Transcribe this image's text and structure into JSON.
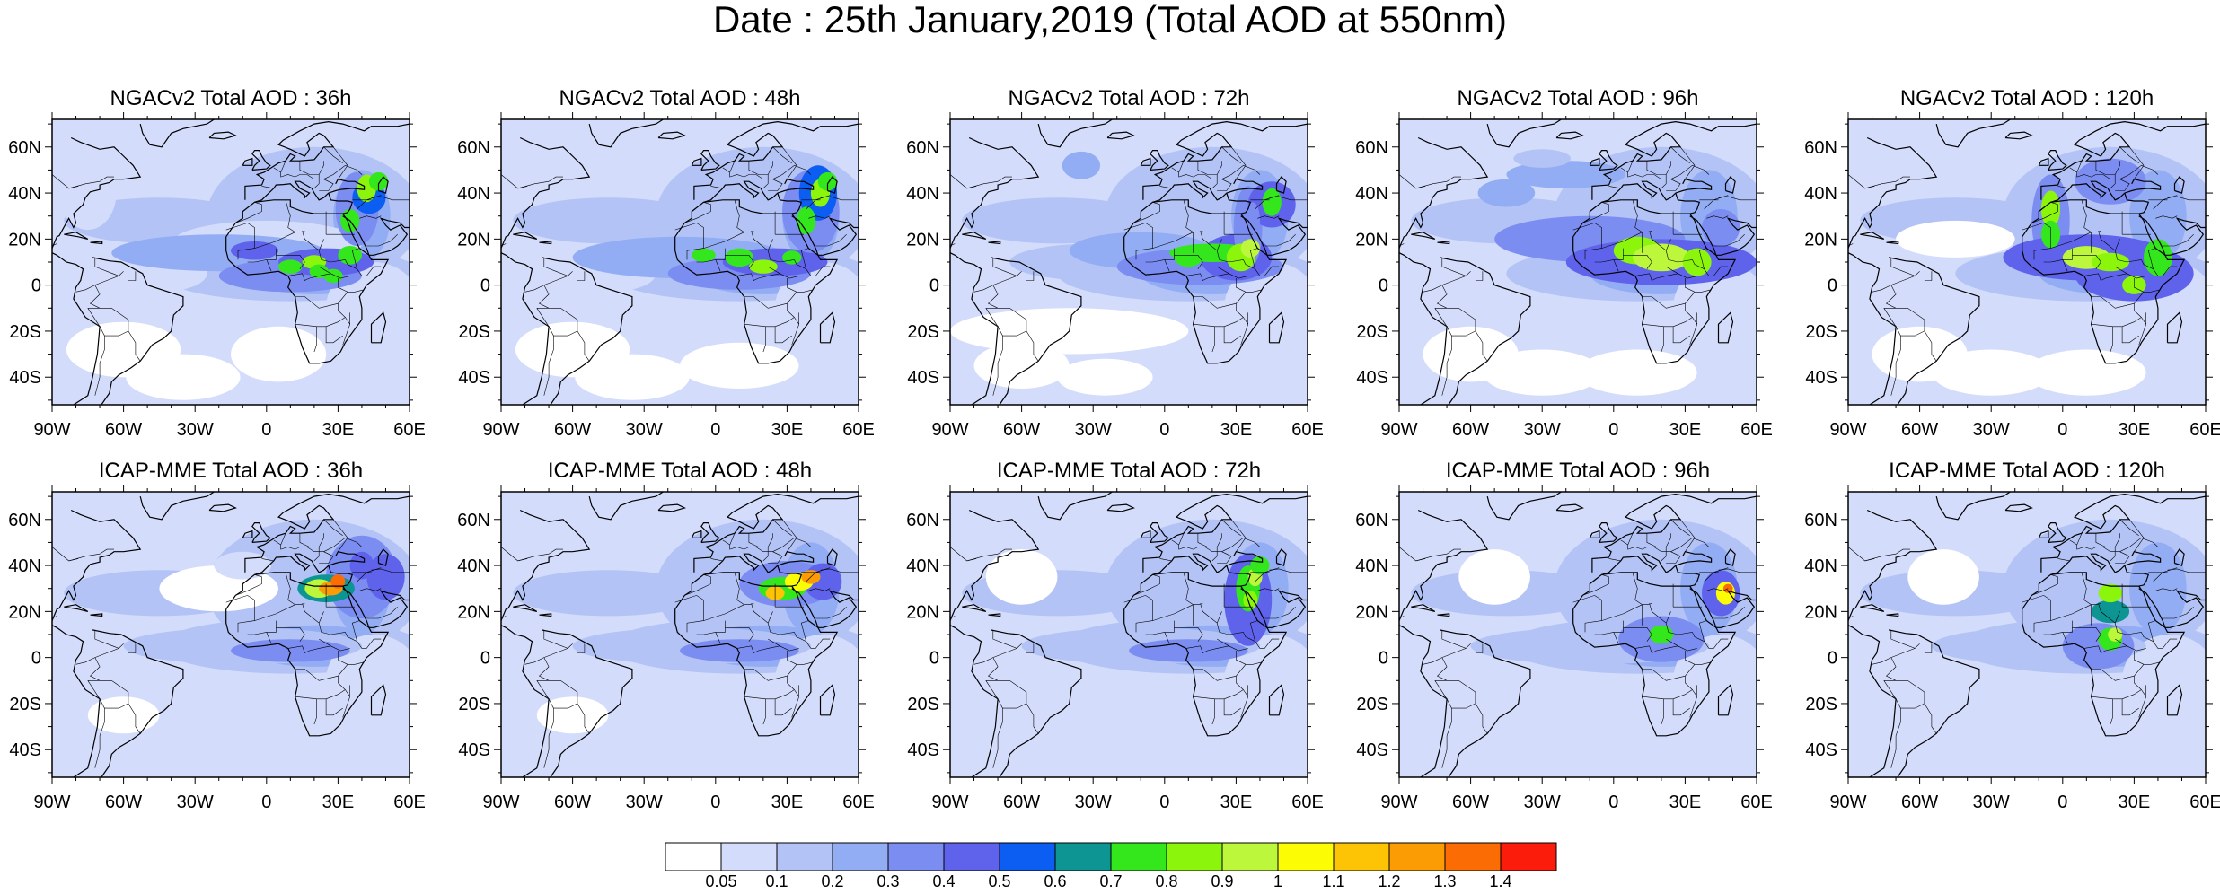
{
  "title": "Date : 25th January,2019 (Total AOD at 550nm)",
  "panels": [
    {
      "title": "NGACv2 Total AOD : 36h"
    },
    {
      "title": "NGACv2 Total AOD : 48h"
    },
    {
      "title": "NGACv2 Total AOD : 72h"
    },
    {
      "title": "NGACv2 Total AOD : 96h"
    },
    {
      "title": "NGACv2 Total AOD : 120h"
    },
    {
      "title": "ICAP-MME Total AOD : 36h"
    },
    {
      "title": "ICAP-MME Total AOD : 48h"
    },
    {
      "title": "ICAP-MME Total AOD : 72h"
    },
    {
      "title": "ICAP-MME Total AOD : 96h"
    },
    {
      "title": "ICAP-MME Total AOD : 120h"
    }
  ],
  "axes": {
    "lon_ticks": [
      "90W",
      "60W",
      "30W",
      "0",
      "30E",
      "60E"
    ],
    "lat_ticks": [
      "60N",
      "40N",
      "20N",
      "0",
      "20S",
      "40S"
    ],
    "lon_range": [
      -90,
      60
    ],
    "lat_range": [
      -52,
      72
    ]
  },
  "colorbar": {
    "labels": [
      "0.05",
      "0.1",
      "0.2",
      "0.3",
      "0.4",
      "0.5",
      "0.6",
      "0.7",
      "0.8",
      "0.9",
      "1",
      "1.1",
      "1.2",
      "1.3",
      "1.4"
    ],
    "colors": [
      "#ffffff",
      "#d3dcfa",
      "#b3c3f6",
      "#93adf4",
      "#7c8df2",
      "#5f63ec",
      "#0c5df2",
      "#0c9592",
      "#34e61c",
      "#8cf50c",
      "#bcf73c",
      "#fcfc04",
      "#fcc404",
      "#fc9c04",
      "#fc6c04",
      "#fc1c0c"
    ]
  }
}
